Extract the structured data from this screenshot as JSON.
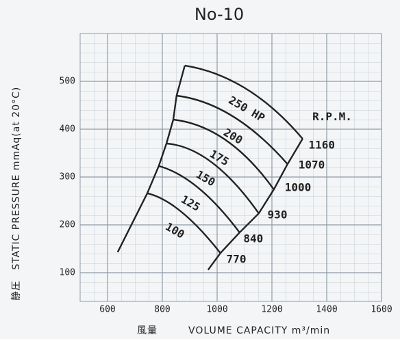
{
  "chart_data": {
    "type": "line",
    "title": "No-10",
    "x_label_prefix": "風量",
    "x_label": "VOLUME CAPACITY m³/min",
    "y_label_prefix": "静圧",
    "y_label": "STATIC PRESSURE mmAq(at 20°C)",
    "xlim": [
      500,
      1600
    ],
    "xticks": [
      600,
      800,
      1000,
      1200,
      1400,
      1600
    ],
    "ylim": [
      40,
      600
    ],
    "yticks": [
      100,
      200,
      300,
      400,
      500
    ],
    "grid": true,
    "color": "#222222",
    "series": [
      {
        "x": [
          882,
          1107,
          1312
        ],
        "values": [
          533,
          484,
          380
        ]
      },
      {
        "x": [
          852,
          1057,
          1257
        ],
        "values": [
          470,
          427,
          327
        ]
      },
      {
        "x": [
          840,
          1032,
          1207
        ],
        "values": [
          420,
          377,
          274
        ]
      },
      {
        "x": [
          815,
          982,
          1152
        ],
        "values": [
          370,
          330,
          224
        ]
      },
      {
        "x": [
          787,
          932,
          1082
        ],
        "values": [
          323,
          277,
          184
        ]
      },
      {
        "x": [
          745,
          870,
          1012
        ],
        "values": [
          266,
          227,
          141
        ]
      },
      {
        "x": [
          637,
          745,
          787,
          815,
          840,
          852,
          882
        ],
        "values": [
          143,
          266,
          323,
          370,
          420,
          470,
          533
        ]
      },
      {
        "x": [
          1312,
          1257,
          1207,
          1152,
          1082,
          1012,
          967
        ],
        "values": [
          380,
          327,
          274,
          224,
          184,
          141,
          106
        ]
      }
    ],
    "annotations": [
      {
        "text": "250 HP",
        "x": 1107,
        "y": 441,
        "rotate": 30
      },
      {
        "text": "200",
        "x": 1057,
        "y": 384,
        "rotate": 30
      },
      {
        "text": "175",
        "x": 1007,
        "y": 339,
        "rotate": 30
      },
      {
        "text": "150",
        "x": 957,
        "y": 296,
        "rotate": 30
      },
      {
        "text": "125",
        "x": 902,
        "y": 244,
        "rotate": 30
      },
      {
        "text": "100",
        "x": 845,
        "y": 187,
        "rotate": 30
      },
      {
        "text": "R.P.M.",
        "x": 1420,
        "y": 425,
        "rotate": 0
      },
      {
        "text": "1160",
        "x": 1382,
        "y": 366,
        "rotate": 0
      },
      {
        "text": "1070",
        "x": 1345,
        "y": 324,
        "rotate": 0
      },
      {
        "text": "1000",
        "x": 1295,
        "y": 277,
        "rotate": 0
      },
      {
        "text": "930",
        "x": 1220,
        "y": 220,
        "rotate": 0
      },
      {
        "text": "840",
        "x": 1132,
        "y": 170,
        "rotate": 0
      },
      {
        "text": "770",
        "x": 1070,
        "y": 127,
        "rotate": 0
      }
    ]
  }
}
